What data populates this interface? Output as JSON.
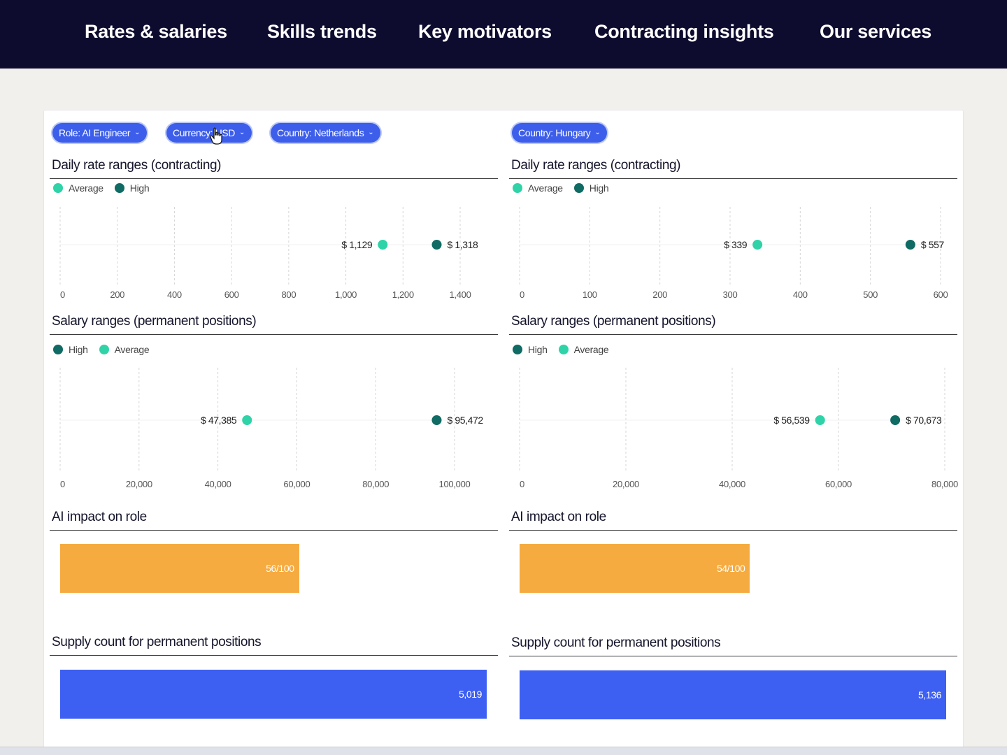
{
  "nav": {
    "items": [
      "Rates & salaries",
      "Skills trends",
      "Key motivators",
      "Contracting insights",
      "Our services"
    ]
  },
  "filters": {
    "role": "Role: AI Engineer",
    "currency": "Currency: USD",
    "country_left": "Country: Netherlands",
    "country_right": "Country: Hungary"
  },
  "colors": {
    "average": "#2fd3a7",
    "high": "#0f6b63",
    "impact_bar": "#f6ab40",
    "supply_bar": "#3d5ff2",
    "nav_bg": "#0d0b2e"
  },
  "left": {
    "daily_title": "Daily rate ranges (contracting)",
    "salary_title": "Salary ranges (permanent positions)",
    "impact_title": "AI impact on role",
    "supply_title": "Supply count for permanent positions",
    "impact_label": "56/100",
    "impact_value": 56,
    "supply_label": "5,019",
    "supply_value": 5019
  },
  "right": {
    "daily_title": "Daily rate ranges (contracting)",
    "salary_title": "Salary ranges (permanent positions)",
    "impact_title": "AI impact on role",
    "supply_title": "Supply count for permanent positions",
    "impact_label": "54/100",
    "impact_value": 54,
    "supply_label": "5,136",
    "supply_value": 5136
  },
  "legend": {
    "average": "Average",
    "high": "High"
  },
  "chart_data": [
    {
      "type": "range",
      "panel": "left-daily",
      "series_order": [
        "Average",
        "High"
      ],
      "average": 1129,
      "high": 1318,
      "average_label": "$ 1,129",
      "high_label": "$ 1,318",
      "ticks": [
        0,
        200,
        400,
        600,
        800,
        1000,
        1200,
        1400
      ],
      "tick_labels": [
        "0",
        "200",
        "400",
        "600",
        "800",
        "1,000",
        "1,200",
        "1,400"
      ],
      "xlim": [
        0,
        1400
      ]
    },
    {
      "type": "range",
      "panel": "left-salary",
      "series_order": [
        "High",
        "Average"
      ],
      "average": 47385,
      "high": 95472,
      "average_label": "$ 47,385",
      "high_label": "$ 95,472",
      "ticks": [
        0,
        20000,
        40000,
        60000,
        80000,
        100000
      ],
      "tick_labels": [
        "0",
        "20,000",
        "40,000",
        "60,000",
        "80,000",
        "100,000"
      ],
      "xlim": [
        0,
        100000
      ]
    },
    {
      "type": "range",
      "panel": "right-daily",
      "series_order": [
        "Average",
        "High"
      ],
      "average": 339,
      "high": 557,
      "average_label": "$ 339",
      "high_label": "$ 557",
      "ticks": [
        0,
        100,
        200,
        300,
        400,
        500,
        600
      ],
      "tick_labels": [
        "0",
        "100",
        "200",
        "300",
        "400",
        "500",
        "600"
      ],
      "xlim": [
        0,
        600
      ]
    },
    {
      "type": "range",
      "panel": "right-salary",
      "series_order": [
        "High",
        "Average"
      ],
      "average": 56539,
      "high": 70673,
      "average_label": "$ 56,539",
      "high_label": "$ 70,673",
      "ticks": [
        0,
        20000,
        40000,
        60000,
        80000
      ],
      "tick_labels": [
        "0",
        "20,000",
        "40,000",
        "60,000",
        "80,000"
      ],
      "xlim": [
        0,
        80000
      ]
    }
  ]
}
